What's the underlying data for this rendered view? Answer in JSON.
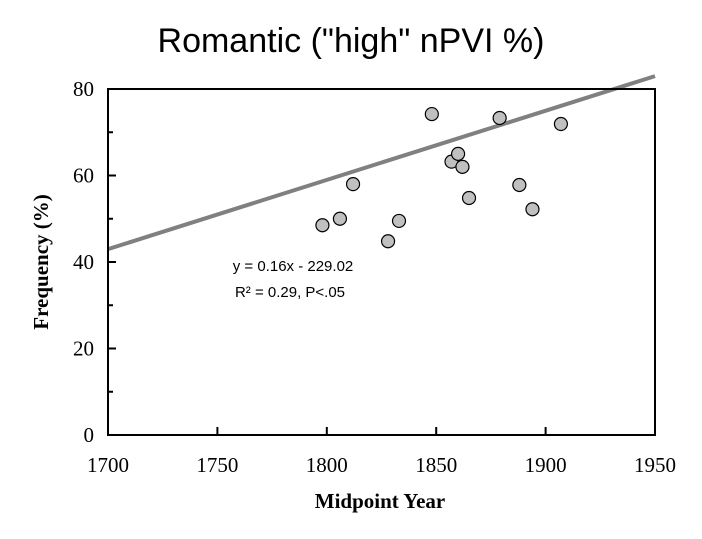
{
  "chart_data": {
    "type": "scatter",
    "title": "Romantic (\"high\" nPVI %)",
    "xlabel": "Midpoint Year",
    "ylabel": "Frequency (%)",
    "xlim": [
      1700,
      1950
    ],
    "ylim": [
      0,
      80
    ],
    "x_ticks": [
      "1700",
      "1750",
      "1800",
      "1850",
      "1900",
      "1950"
    ],
    "y_ticks": [
      "0",
      "20",
      "40",
      "60",
      "80"
    ],
    "grid": false,
    "legend": "none",
    "points": [
      {
        "x": 1798,
        "y": 48.5
      },
      {
        "x": 1806,
        "y": 50.0
      },
      {
        "x": 1812,
        "y": 58.0
      },
      {
        "x": 1828,
        "y": 44.8
      },
      {
        "x": 1833,
        "y": 49.5
      },
      {
        "x": 1848,
        "y": 74.2
      },
      {
        "x": 1857,
        "y": 63.2
      },
      {
        "x": 1860,
        "y": 65.0
      },
      {
        "x": 1862,
        "y": 62.0
      },
      {
        "x": 1865,
        "y": 54.8
      },
      {
        "x": 1879,
        "y": 73.3
      },
      {
        "x": 1888,
        "y": 57.8
      },
      {
        "x": 1894,
        "y": 52.2
      },
      {
        "x": 1907,
        "y": 71.9
      }
    ],
    "trendline": {
      "slope": 0.16,
      "intercept": -229.02
    },
    "annotations": [
      "y = 0.16x - 229.02",
      "R² = 0.29, P<.05"
    ],
    "colors": {
      "marker_fill": "#c0c0c0",
      "marker_stroke": "#000000",
      "trendline": "#808080"
    }
  }
}
